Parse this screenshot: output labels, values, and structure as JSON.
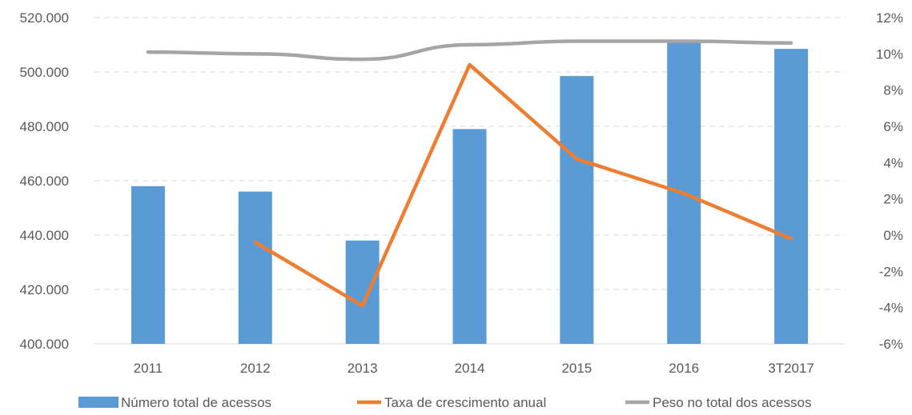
{
  "chart_data": {
    "type": "bar",
    "categories": [
      "2011",
      "2012",
      "2013",
      "2014",
      "2015",
      "2016",
      "3T2017"
    ],
    "series": [
      {
        "name": "Número total de acessos",
        "type": "bar",
        "axis": "left",
        "color": "#5b9bd5",
        "values": [
          458000,
          456000,
          438000,
          479000,
          498500,
          511000,
          508500
        ]
      },
      {
        "name": "Taxa de crescimento anual",
        "type": "line",
        "axis": "right",
        "color": "#ed7d31",
        "values": [
          null,
          -0.4,
          -3.9,
          9.4,
          4.2,
          2.3,
          -0.2
        ]
      },
      {
        "name": "Peso no total dos acessos",
        "type": "line",
        "axis": "right",
        "color": "#a5a5a5",
        "values": [
          10.1,
          10.0,
          9.7,
          10.5,
          10.7,
          10.7,
          10.6
        ]
      }
    ],
    "y_left": {
      "ylim": [
        400000,
        520000
      ],
      "ticks": [
        400000,
        420000,
        440000,
        460000,
        480000,
        500000,
        520000
      ],
      "tick_labels": [
        "400.000",
        "420.000",
        "440.000",
        "460.000",
        "480.000",
        "500.000",
        "520.000"
      ]
    },
    "y_right": {
      "ylim": [
        -6,
        12
      ],
      "ticks": [
        -6,
        -4,
        -2,
        0,
        2,
        4,
        6,
        8,
        10,
        12
      ],
      "tick_labels": [
        "-6%",
        "-4%",
        "-2%",
        "0%",
        "2%",
        "4%",
        "6%",
        "8%",
        "10%",
        "12%"
      ]
    },
    "grid": "horizontal-dashed",
    "legend": "bottom"
  }
}
